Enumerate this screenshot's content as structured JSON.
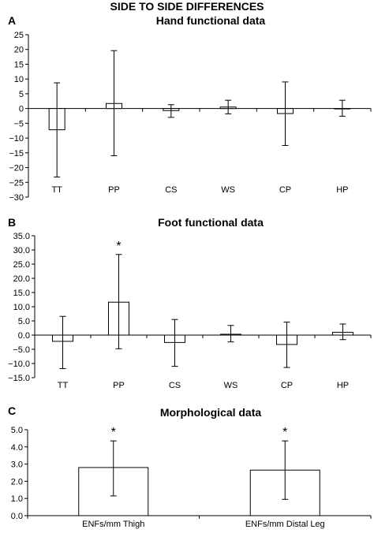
{
  "figure_title": "SIDE TO SIDE DIFFERENCES",
  "chart_data": [
    {
      "panel": "A",
      "type": "bar",
      "title": "Hand functional data",
      "categories": [
        "TT",
        "PP",
        "CS",
        "WS",
        "CP",
        "HP"
      ],
      "values": [
        -7.2,
        1.7,
        -0.7,
        0.5,
        -1.7,
        0.0
      ],
      "error_low": [
        -23.2,
        -16.0,
        -3.0,
        -1.8,
        -12.5,
        -2.6
      ],
      "error_high": [
        8.7,
        19.6,
        1.3,
        2.8,
        9.0,
        2.8
      ],
      "significant": [
        false,
        false,
        false,
        false,
        false,
        false
      ],
      "ylim": [
        -30,
        25
      ],
      "yticks": [
        25,
        20,
        15,
        10,
        5,
        0,
        -5,
        -10,
        -15,
        -20,
        -25,
        -30
      ],
      "ytick_labels": [
        "25",
        "20",
        "15",
        "10",
        "5",
        "0",
        "−5",
        "−10",
        "−15",
        "−20",
        "−25",
        "−30"
      ]
    },
    {
      "panel": "B",
      "type": "bar",
      "title": "Foot functional data",
      "categories": [
        "TT",
        "PP",
        "CS",
        "WS",
        "CP",
        "HP"
      ],
      "values": [
        -2.2,
        11.6,
        -2.6,
        0.3,
        -3.3,
        1.0
      ],
      "error_low": [
        -11.8,
        -4.8,
        -11.0,
        -2.4,
        -11.4,
        -1.6
      ],
      "error_high": [
        6.6,
        28.4,
        5.5,
        3.4,
        4.6,
        3.9
      ],
      "significant": [
        false,
        true,
        false,
        false,
        false,
        false
      ],
      "significance_marker": "*",
      "ylim": [
        -15,
        35
      ],
      "yticks": [
        35,
        30,
        25,
        20,
        15,
        10,
        5,
        0,
        -5,
        -10,
        -15
      ],
      "ytick_labels": [
        "35.0",
        "30.0",
        "25.0",
        "20.0",
        "15.0",
        "10.0",
        "5.0",
        "0.0",
        "−5.0",
        "−10.0",
        "−15.0"
      ]
    },
    {
      "panel": "C",
      "type": "bar",
      "title": "Morphological data",
      "categories": [
        "ENFs/mm Thigh",
        "ENFs/mm Distal Leg"
      ],
      "values": [
        2.8,
        2.65
      ],
      "error_low": [
        1.15,
        0.95
      ],
      "error_high": [
        4.35,
        4.35
      ],
      "significant": [
        true,
        true
      ],
      "significance_marker": "*",
      "ylim": [
        0,
        5
      ],
      "yticks": [
        5,
        4,
        3,
        2,
        1,
        0
      ],
      "ytick_labels": [
        "5.0",
        "4.0",
        "3.0",
        "2.0",
        "1.0",
        "0.0"
      ]
    }
  ]
}
